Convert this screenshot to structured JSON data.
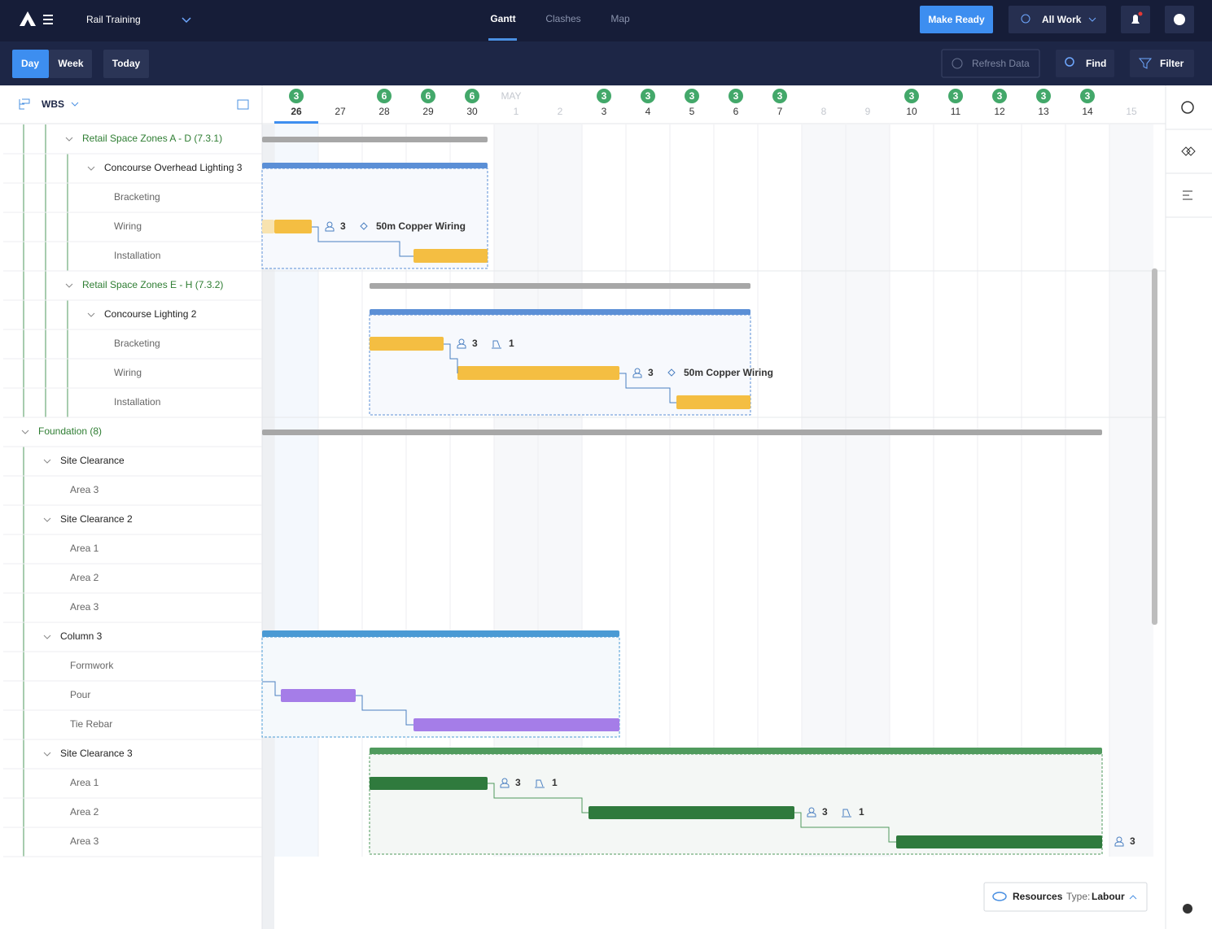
{
  "header": {
    "project": "Rail Training",
    "tabs": [
      "Gantt",
      "Clashes",
      "Map"
    ],
    "make_ready": "Make Ready",
    "all_work": "All Work"
  },
  "toolbar": {
    "views": [
      "Day",
      "Week"
    ],
    "today": "Today",
    "refresh": "Refresh Data",
    "find": "Find",
    "filter": "Filter"
  },
  "sidebar": {
    "title": "WBS",
    "rows": [
      "Retail Space Zones A - D (7.3.1)",
      "Concourse Overhead Lighting 3",
      "Bracketing",
      "Wiring",
      "Installation",
      "Retail Space Zones E - H (7.3.2)",
      "Concourse Lighting 2",
      "Bracketing",
      "Wiring",
      "Installation",
      "Foundation (8)",
      "Site Clearance",
      "Area 3",
      "Site Clearance 2",
      "Area 1",
      "Area 2",
      "Area 3",
      "Column 3",
      "Formwork",
      "Pour",
      "Tie Rebar",
      "Site Clearance 3",
      "Area 1",
      "Area 2",
      "Area 3"
    ]
  },
  "timeline": {
    "month": "MAY",
    "days": [
      {
        "day": 26,
        "badge": 3
      },
      {
        "day": 27,
        "badge": null
      },
      {
        "day": 28,
        "badge": 6
      },
      {
        "day": 29,
        "badge": 6
      },
      {
        "day": 30,
        "badge": 6
      },
      {
        "day": 1,
        "badge": null
      },
      {
        "day": 2,
        "badge": null
      },
      {
        "day": 3,
        "badge": 3
      },
      {
        "day": 4,
        "badge": 3
      },
      {
        "day": 5,
        "badge": 3
      },
      {
        "day": 6,
        "badge": 3
      },
      {
        "day": 7,
        "badge": 3
      },
      {
        "day": 8,
        "badge": null
      },
      {
        "day": 9,
        "badge": null
      },
      {
        "day": 10,
        "badge": 3
      },
      {
        "day": 11,
        "badge": 3
      },
      {
        "day": 12,
        "badge": 3
      },
      {
        "day": 13,
        "badge": 3
      },
      {
        "day": 14,
        "badge": 3
      },
      {
        "day": 15,
        "badge": null
      }
    ]
  },
  "task_labels": [
    {
      "crew": 3,
      "item": "50m Copper Wiring"
    },
    {
      "crew": 3,
      "equipment": 1
    },
    {
      "crew": 3,
      "item": "50m Copper Wiring"
    },
    {
      "crew": 3,
      "equipment": 1
    },
    {
      "crew": 3,
      "equipment": 1
    },
    {
      "crew": 3
    }
  ],
  "resources": {
    "label": "Resources",
    "type_label": "Type:",
    "type": "Labour"
  }
}
